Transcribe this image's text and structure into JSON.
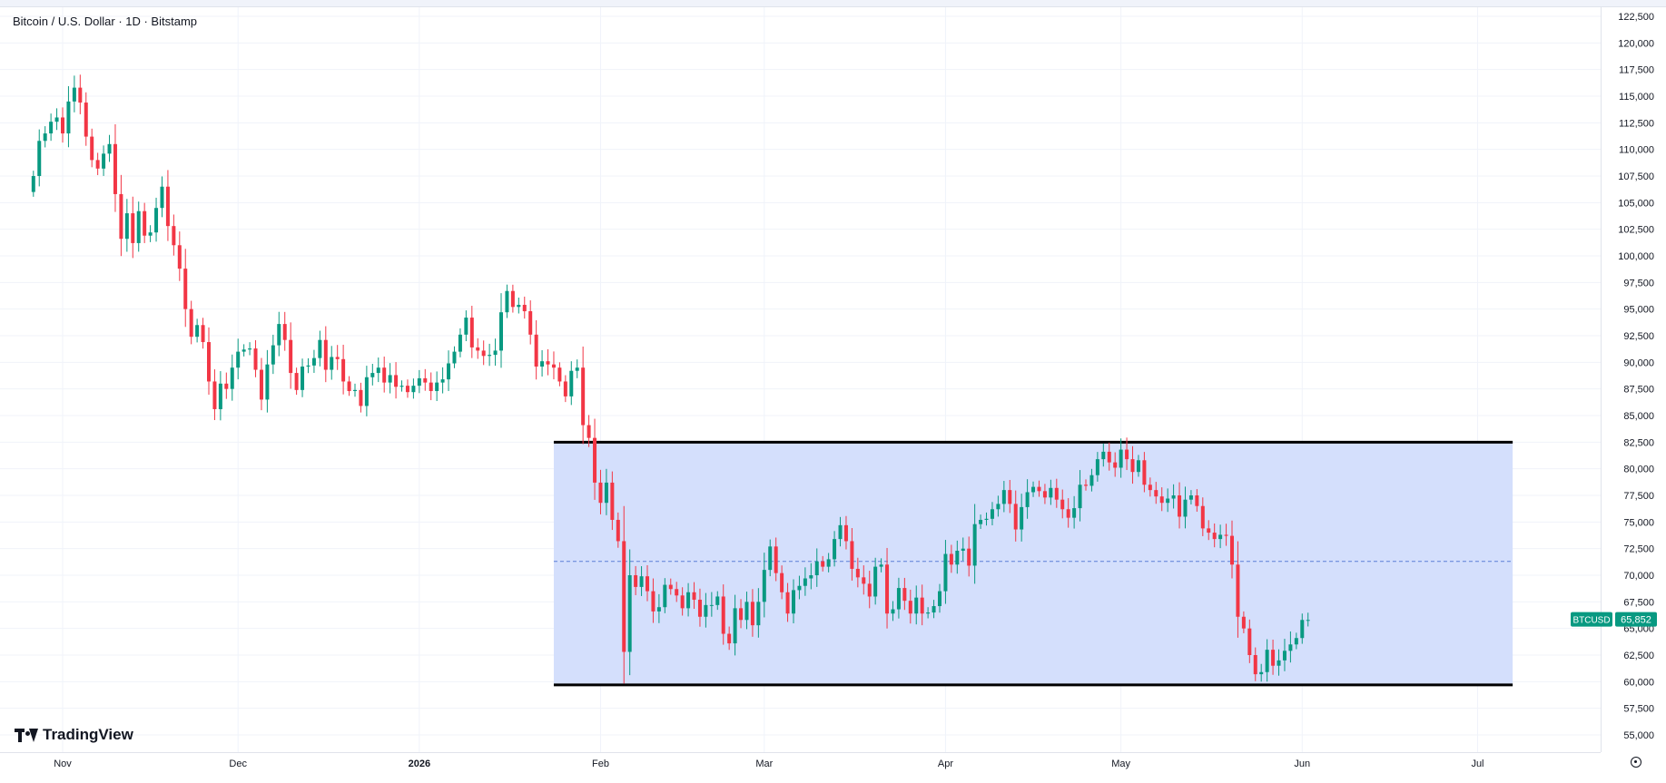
{
  "header": {
    "title": "Bitcoin / U.S. Dollar · 1D · Bitstamp"
  },
  "branding": {
    "logo_text": "TradingView",
    "logo_icon": "tradingview-logo-icon"
  },
  "price_badge": {
    "symbol": "BTCUSD",
    "price": "65,852",
    "color": "#089981"
  },
  "colors": {
    "up": "#089981",
    "down": "#f23645",
    "range_fill": "#d2ddfc",
    "range_line": "#000000",
    "midline": "#5b7fd6"
  },
  "chart_data": {
    "type": "candlestick",
    "title": "Bitcoin / U.S. Dollar · 1D · Bitstamp",
    "xlabel": "",
    "ylabel": "",
    "ylim": [
      53750,
      123250
    ],
    "y_ticks": [
      "55,000",
      "57,500",
      "60,000",
      "62,500",
      "65,000",
      "67,500",
      "70,000",
      "72,500",
      "75,000",
      "77,500",
      "80,000",
      "82,500",
      "85,000",
      "87,500",
      "90,000",
      "92,500",
      "95,000",
      "97,500",
      "100,000",
      "102,500",
      "105,000",
      "107,500",
      "110,000",
      "112,500",
      "115,000",
      "117,500",
      "120,000",
      "122,500"
    ],
    "x_ticks": [
      {
        "date": "2025-11-01",
        "label": "Nov"
      },
      {
        "date": "2025-12-01",
        "label": "Dec"
      },
      {
        "date": "2026-01-01",
        "label": "2026"
      },
      {
        "date": "2026-02-01",
        "label": "Feb"
      },
      {
        "date": "2026-03-01",
        "label": "Mar"
      },
      {
        "date": "2026-04-01",
        "label": "Apr"
      },
      {
        "date": "2026-05-01",
        "label": "May"
      },
      {
        "date": "2026-06-01",
        "label": "Jun"
      },
      {
        "date": "2026-07-01",
        "label": "Jul"
      }
    ],
    "grid": true,
    "last_price": 65852,
    "range_annotation": {
      "start": "2026-01-24",
      "end": "2026-07-07",
      "top": 82500,
      "bottom": 59700,
      "midline": 71300
    },
    "series": [
      {
        "name": "BTCUSD",
        "start_date": "2025-10-27",
        "closes": [
          107500,
          110800,
          111500,
          112600,
          113000,
          111500,
          114500,
          115800,
          114400,
          111200,
          109000,
          108200,
          109600,
          110500,
          105800,
          101600,
          104000,
          101200,
          104200,
          101900,
          102200,
          104500,
          106500,
          102800,
          101000,
          98800,
          95000,
          92400,
          93500,
          91900,
          88200,
          85600,
          88000,
          87500,
          89500,
          91000,
          91200,
          91300,
          89300,
          86500,
          89800,
          91600,
          93600,
          92100,
          89000,
          87400,
          89600,
          89700,
          90400,
          92100,
          89300,
          90500,
          90300,
          88200,
          87300,
          87400,
          85900,
          88600,
          89000,
          89500,
          88100,
          88800,
          87700,
          87800,
          87200,
          87800,
          88500,
          88100,
          87300,
          88100,
          88400,
          89900,
          91000,
          92600,
          94200,
          91400,
          91100,
          90600,
          90700,
          91100,
          94700,
          96700,
          95200,
          95400,
          94800,
          92600,
          89600,
          90100,
          89800,
          89500,
          88200,
          86800,
          89200,
          89500,
          84100,
          82900,
          78700,
          76800,
          78700,
          75200,
          73200,
          62800,
          70000,
          68900,
          69900,
          68500,
          66600,
          67000,
          69100,
          68700,
          68100,
          66900,
          68400,
          67700,
          66100,
          67200,
          67200,
          68000,
          64500,
          63600,
          66900,
          65800,
          67500,
          65300,
          67500,
          70500,
          72700,
          70200,
          68400,
          66400,
          68600,
          69000,
          69700,
          70000,
          71300,
          70800,
          71500,
          73400,
          74700,
          73200,
          70600,
          69800,
          69200,
          68000,
          70800,
          71000,
          66400,
          66800,
          68800,
          67600,
          66400,
          67900,
          66400,
          66500,
          67100,
          68500,
          72000,
          71000,
          72300,
          72500,
          70900,
          74800,
          75200,
          75300,
          76200,
          76700,
          78000,
          76700,
          74300,
          76400,
          77800,
          78300,
          77900,
          77300,
          78200,
          77100,
          76200,
          75400,
          76300,
          78500,
          78400,
          79400,
          80900,
          81600,
          80600,
          80100,
          81800,
          80900,
          79700,
          80800,
          78500,
          78000,
          77400,
          76800,
          77200,
          77500,
          75500,
          77100,
          77500,
          76500,
          74400,
          74000,
          73400,
          73800,
          73700,
          71000,
          66100,
          65000,
          62500,
          60700,
          60900,
          63000,
          61500,
          62000,
          62900,
          63500,
          64100,
          65800,
          65800
        ]
      }
    ]
  }
}
